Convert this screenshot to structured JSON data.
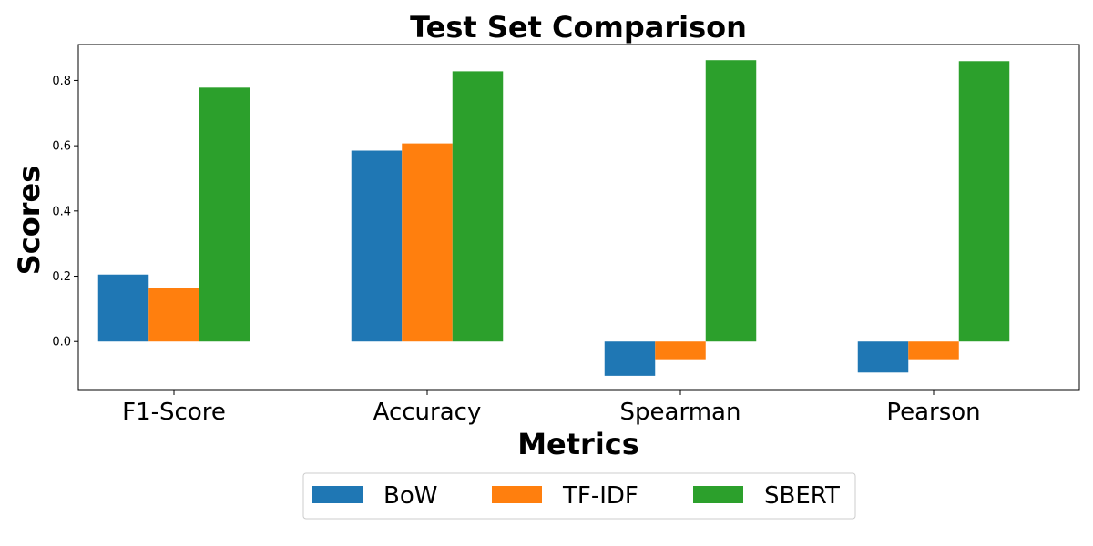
{
  "chart_data": {
    "type": "bar",
    "title": "Test Set Comparison",
    "xlabel": "Metrics",
    "ylabel": "Scores",
    "categories": [
      "F1-Score",
      "Accuracy",
      "Spearman",
      "Pearson"
    ],
    "series": [
      {
        "name": "BoW",
        "color": "#1f77b4",
        "values": [
          0.205,
          0.585,
          -0.105,
          -0.095
        ]
      },
      {
        "name": "TF-IDF",
        "color": "#ff7f0e",
        "values": [
          0.163,
          0.607,
          -0.057,
          -0.057
        ]
      },
      {
        "name": "SBERT",
        "color": "#2ca02c",
        "values": [
          0.778,
          0.828,
          0.862,
          0.859
        ]
      }
    ],
    "yticks": [
      "0.0",
      "0.2",
      "0.4",
      "0.6",
      "0.8"
    ],
    "ylim": [
      -0.15,
      0.91
    ],
    "grid": false,
    "legend_position": "bottom-center"
  }
}
